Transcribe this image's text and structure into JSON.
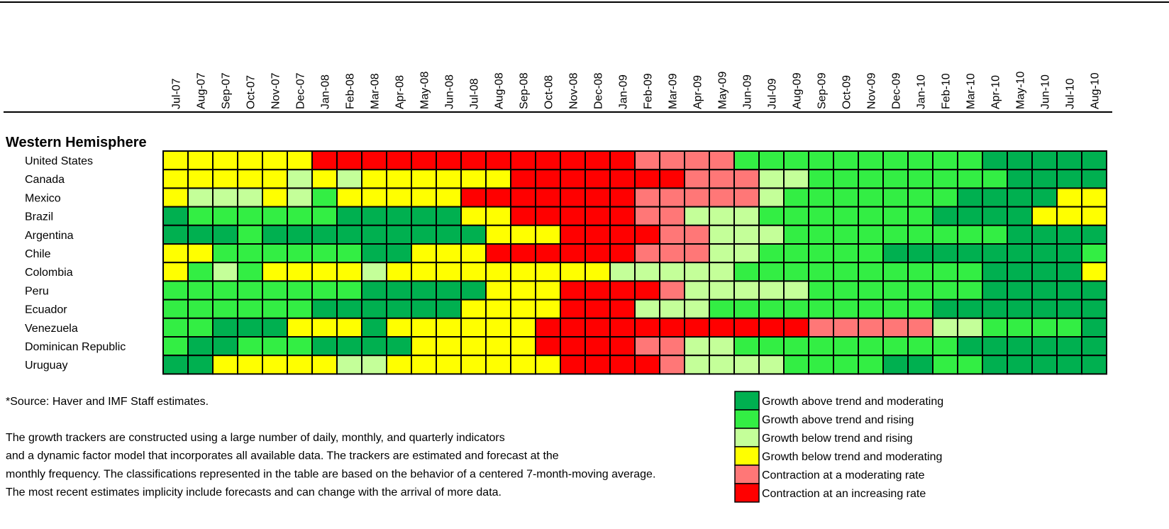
{
  "section": "Western Hemisphere",
  "months": [
    "Jul-07",
    "Aug-07",
    "Sep-07",
    "Oct-07",
    "Nov-07",
    "Dec-07",
    "Jan-08",
    "Feb-08",
    "Mar-08",
    "Apr-08",
    "May-08",
    "Jun-08",
    "Jul-08",
    "Aug-08",
    "Sep-08",
    "Oct-08",
    "Nov-08",
    "Dec-08",
    "Jan-09",
    "Feb-09",
    "Mar-09",
    "Apr-09",
    "May-09",
    "Jun-09",
    "Jul-09",
    "Aug-09",
    "Sep-09",
    "Oct-09",
    "Nov-09",
    "Dec-09",
    "Jan-10",
    "Feb-10",
    "Mar-10",
    "Apr-10",
    "May-10",
    "Jun-10",
    "Jul-10",
    "Aug-10"
  ],
  "rows": [
    {
      "name": "United States",
      "cells": [
        "#ffff00",
        "#ffff00",
        "#ffff00",
        "#ffff00",
        "#ffff00",
        "#ffff00",
        "#ff0000",
        "#ff0000",
        "#ff0000",
        "#ff0000",
        "#ff0000",
        "#ff0000",
        "#ff0000",
        "#ff0000",
        "#ff0000",
        "#ff0000",
        "#ff0000",
        "#ff0000",
        "#ff0000",
        "#ff7777",
        "#ff7777",
        "#ff7777",
        "#ff7777",
        "#33ee44",
        "#33ee44",
        "#33ee44",
        "#33ee44",
        "#33ee44",
        "#33ee44",
        "#33ee44",
        "#33ee44",
        "#33ee44",
        "#33ee44",
        "#00b050",
        "#00b050",
        "#00b050",
        "#00b050",
        "#00b050"
      ]
    },
    {
      "name": "Canada",
      "cells": [
        "#ffff00",
        "#ffff00",
        "#ffff00",
        "#ffff00",
        "#ffff00",
        "#c4ff99",
        "#ffff00",
        "#c4ff99",
        "#ffff00",
        "#ffff00",
        "#ffff00",
        "#ffff00",
        "#ffff00",
        "#ffff00",
        "#ff0000",
        "#ff0000",
        "#ff0000",
        "#ff0000",
        "#ff0000",
        "#ff0000",
        "#ff0000",
        "#ff7777",
        "#ff7777",
        "#ff7777",
        "#c4ff99",
        "#c4ff99",
        "#33ee44",
        "#33ee44",
        "#33ee44",
        "#33ee44",
        "#33ee44",
        "#33ee44",
        "#33ee44",
        "#33ee44",
        "#00b050",
        "#00b050",
        "#00b050",
        "#00b050"
      ]
    },
    {
      "name": "Mexico",
      "cells": [
        "#ffff00",
        "#c4ff99",
        "#c4ff99",
        "#c4ff99",
        "#ffff00",
        "#c4ff99",
        "#33ee44",
        "#ffff00",
        "#ffff00",
        "#ffff00",
        "#ffff00",
        "#ffff00",
        "#ff0000",
        "#ff0000",
        "#ff0000",
        "#ff0000",
        "#ff0000",
        "#ff0000",
        "#ff0000",
        "#ff7777",
        "#ff7777",
        "#ff7777",
        "#ff7777",
        "#ff7777",
        "#c4ff99",
        "#33ee44",
        "#33ee44",
        "#33ee44",
        "#33ee44",
        "#33ee44",
        "#33ee44",
        "#33ee44",
        "#00b050",
        "#00b050",
        "#00b050",
        "#00b050",
        "#ffff00",
        "#ffff00"
      ]
    },
    {
      "name": "Brazil",
      "cells": [
        "#00b050",
        "#33ee44",
        "#33ee44",
        "#33ee44",
        "#33ee44",
        "#33ee44",
        "#33ee44",
        "#00b050",
        "#00b050",
        "#00b050",
        "#00b050",
        "#00b050",
        "#ffff00",
        "#ffff00",
        "#ff0000",
        "#ff0000",
        "#ff0000",
        "#ff0000",
        "#ff0000",
        "#ff7777",
        "#ff7777",
        "#c4ff99",
        "#c4ff99",
        "#c4ff99",
        "#33ee44",
        "#33ee44",
        "#33ee44",
        "#33ee44",
        "#33ee44",
        "#33ee44",
        "#33ee44",
        "#00b050",
        "#00b050",
        "#00b050",
        "#00b050",
        "#ffff00",
        "#ffff00",
        "#ffff00"
      ]
    },
    {
      "name": "Argentina",
      "cells": [
        "#00b050",
        "#00b050",
        "#00b050",
        "#33ee44",
        "#00b050",
        "#00b050",
        "#00b050",
        "#00b050",
        "#00b050",
        "#00b050",
        "#00b050",
        "#00b050",
        "#00b050",
        "#ffff00",
        "#ffff00",
        "#ffff00",
        "#ff0000",
        "#ff0000",
        "#ff0000",
        "#ff0000",
        "#ff7777",
        "#ff7777",
        "#c4ff99",
        "#c4ff99",
        "#c4ff99",
        "#33ee44",
        "#33ee44",
        "#33ee44",
        "#33ee44",
        "#33ee44",
        "#33ee44",
        "#33ee44",
        "#33ee44",
        "#33ee44",
        "#00b050",
        "#00b050",
        "#00b050",
        "#00b050"
      ]
    },
    {
      "name": "Chile",
      "cells": [
        "#ffff00",
        "#ffff00",
        "#33ee44",
        "#33ee44",
        "#33ee44",
        "#33ee44",
        "#33ee44",
        "#33ee44",
        "#00b050",
        "#00b050",
        "#ffff00",
        "#ffff00",
        "#ffff00",
        "#ff0000",
        "#ff0000",
        "#ff0000",
        "#ff0000",
        "#ff0000",
        "#ff0000",
        "#ff7777",
        "#ff7777",
        "#ff7777",
        "#c4ff99",
        "#c4ff99",
        "#33ee44",
        "#33ee44",
        "#33ee44",
        "#33ee44",
        "#33ee44",
        "#00b050",
        "#00b050",
        "#00b050",
        "#00b050",
        "#00b050",
        "#00b050",
        "#00b050",
        "#00b050",
        "#33ee44"
      ]
    },
    {
      "name": "Colombia",
      "cells": [
        "#ffff00",
        "#33ee44",
        "#c4ff99",
        "#33ee44",
        "#ffff00",
        "#ffff00",
        "#ffff00",
        "#ffff00",
        "#c4ff99",
        "#ffff00",
        "#ffff00",
        "#ffff00",
        "#ffff00",
        "#ffff00",
        "#ffff00",
        "#ffff00",
        "#ffff00",
        "#ffff00",
        "#c4ff99",
        "#c4ff99",
        "#c4ff99",
        "#c4ff99",
        "#c4ff99",
        "#33ee44",
        "#33ee44",
        "#33ee44",
        "#33ee44",
        "#33ee44",
        "#33ee44",
        "#33ee44",
        "#33ee44",
        "#33ee44",
        "#33ee44",
        "#00b050",
        "#00b050",
        "#00b050",
        "#00b050",
        "#ffff00"
      ]
    },
    {
      "name": "Peru",
      "cells": [
        "#33ee44",
        "#33ee44",
        "#33ee44",
        "#33ee44",
        "#33ee44",
        "#33ee44",
        "#33ee44",
        "#33ee44",
        "#00b050",
        "#00b050",
        "#00b050",
        "#00b050",
        "#00b050",
        "#ffff00",
        "#ffff00",
        "#ffff00",
        "#ff0000",
        "#ff0000",
        "#ff0000",
        "#ff0000",
        "#ff7777",
        "#c4ff99",
        "#c4ff99",
        "#c4ff99",
        "#c4ff99",
        "#c4ff99",
        "#33ee44",
        "#33ee44",
        "#33ee44",
        "#33ee44",
        "#33ee44",
        "#33ee44",
        "#33ee44",
        "#00b050",
        "#00b050",
        "#00b050",
        "#00b050",
        "#00b050"
      ]
    },
    {
      "name": "Ecuador",
      "cells": [
        "#33ee44",
        "#33ee44",
        "#33ee44",
        "#33ee44",
        "#33ee44",
        "#33ee44",
        "#00b050",
        "#00b050",
        "#00b050",
        "#00b050",
        "#00b050",
        "#00b050",
        "#ffff00",
        "#ffff00",
        "#ffff00",
        "#ffff00",
        "#ff0000",
        "#ff0000",
        "#ff0000",
        "#c4ff99",
        "#c4ff99",
        "#c4ff99",
        "#33ee44",
        "#33ee44",
        "#33ee44",
        "#33ee44",
        "#33ee44",
        "#33ee44",
        "#33ee44",
        "#33ee44",
        "#33ee44",
        "#00b050",
        "#00b050",
        "#00b050",
        "#00b050",
        "#00b050",
        "#00b050",
        "#00b050"
      ]
    },
    {
      "name": "Venezuela",
      "cells": [
        "#33ee44",
        "#33ee44",
        "#00b050",
        "#00b050",
        "#00b050",
        "#ffff00",
        "#ffff00",
        "#ffff00",
        "#00b050",
        "#ffff00",
        "#ffff00",
        "#ffff00",
        "#ffff00",
        "#ffff00",
        "#ffff00",
        "#ff0000",
        "#ff0000",
        "#ff0000",
        "#ff0000",
        "#ff0000",
        "#ff0000",
        "#ff0000",
        "#ff0000",
        "#ff0000",
        "#ff0000",
        "#ff0000",
        "#ff7777",
        "#ff7777",
        "#ff7777",
        "#ff7777",
        "#ff7777",
        "#c4ff99",
        "#c4ff99",
        "#33ee44",
        "#33ee44",
        "#33ee44",
        "#33ee44",
        "#00b050"
      ]
    },
    {
      "name": "Dominican Republic",
      "cells": [
        "#33ee44",
        "#00b050",
        "#00b050",
        "#33ee44",
        "#33ee44",
        "#33ee44",
        "#00b050",
        "#00b050",
        "#00b050",
        "#00b050",
        "#ffff00",
        "#ffff00",
        "#ffff00",
        "#ffff00",
        "#ffff00",
        "#ff0000",
        "#ff0000",
        "#ff0000",
        "#ff0000",
        "#ff7777",
        "#ff7777",
        "#c4ff99",
        "#c4ff99",
        "#33ee44",
        "#33ee44",
        "#33ee44",
        "#33ee44",
        "#33ee44",
        "#33ee44",
        "#33ee44",
        "#33ee44",
        "#33ee44",
        "#00b050",
        "#00b050",
        "#00b050",
        "#00b050",
        "#00b050",
        "#00b050"
      ]
    },
    {
      "name": "Uruguay",
      "cells": [
        "#00b050",
        "#00b050",
        "#ffff00",
        "#ffff00",
        "#ffff00",
        "#ffff00",
        "#ffff00",
        "#c4ff99",
        "#c4ff99",
        "#ffff00",
        "#ffff00",
        "#ffff00",
        "#ffff00",
        "#ffff00",
        "#ffff00",
        "#ffff00",
        "#ff0000",
        "#ff0000",
        "#ff0000",
        "#ff0000",
        "#ff7777",
        "#c4ff99",
        "#c4ff99",
        "#c4ff99",
        "#c4ff99",
        "#33ee44",
        "#33ee44",
        "#33ee44",
        "#33ee44",
        "#00b050",
        "#00b050",
        "#33ee44",
        "#33ee44",
        "#00b050",
        "#00b050",
        "#00b050",
        "#00b050",
        "#00b050"
      ]
    }
  ],
  "source": "*Source: Haver and IMF Staff estimates.",
  "notes": [
    "The growth trackers are constructed using a large number of daily, monthly, and quarterly  indicators",
    "and a dynamic factor model that incorporates all available data. The trackers are estimated and forecast at the",
    "monthly frequency. The classifications represented in the table are based on the behavior of a centered 7-month-moving average.",
    "The most recent estimates implicity include forecasts and can change with the arrival of more data."
  ],
  "legend": [
    {
      "label": "Growth above trend and moderating",
      "color": "#00b050"
    },
    {
      "label": "Growth above trend and rising",
      "color": "#33ee44"
    },
    {
      "label": "Growth below trend and rising",
      "color": "#c4ff99"
    },
    {
      "label": "Growth below trend and moderating",
      "color": "#ffff00"
    },
    {
      "label": "Contraction at a moderating rate",
      "color": "#ff7777"
    },
    {
      "label": "Contraction at an increasing rate",
      "color": "#ff0000"
    }
  ]
}
